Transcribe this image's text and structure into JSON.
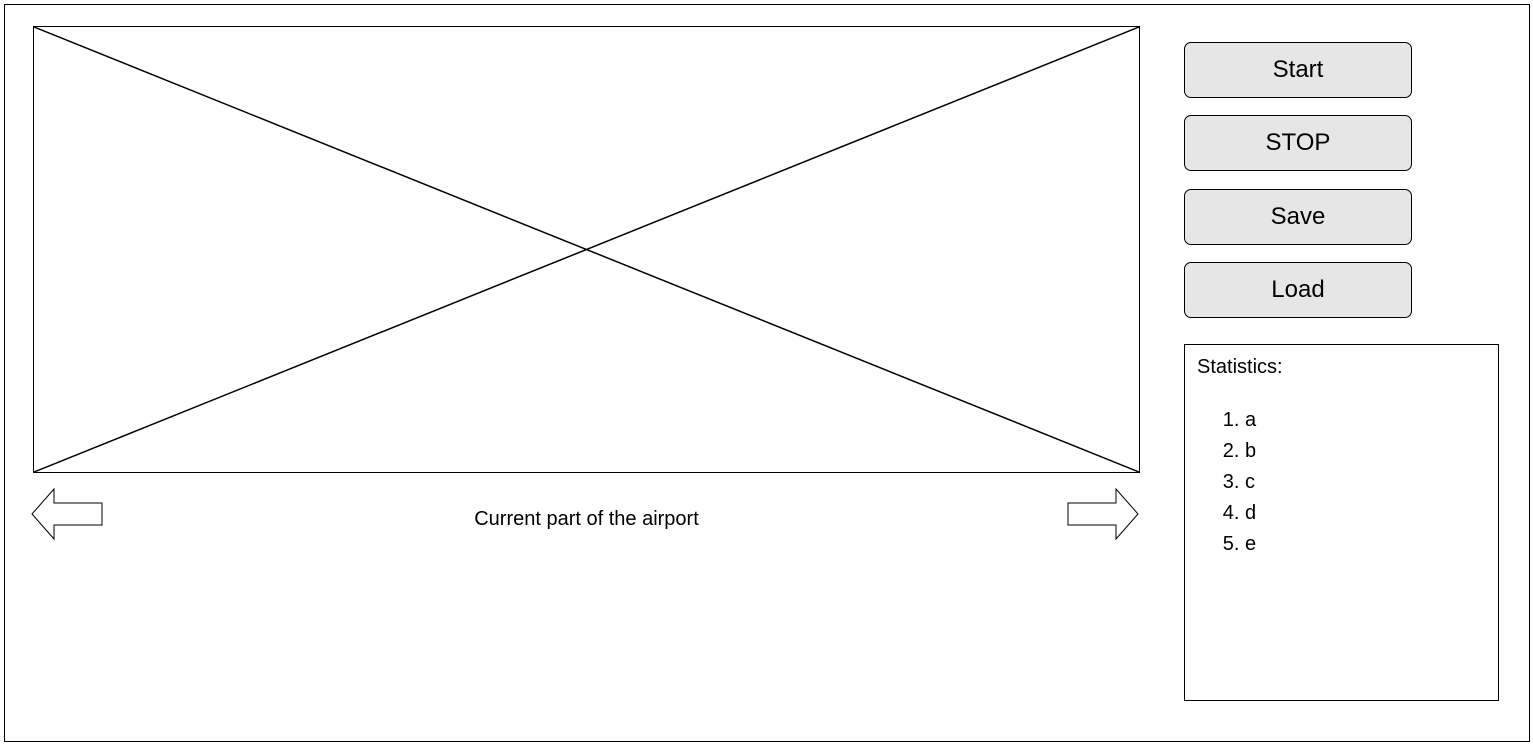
{
  "viewport": {
    "caption": "Current part of the airport",
    "left_arrow_icon": "arrow-left-icon",
    "right_arrow_icon": "arrow-right-icon"
  },
  "controls": {
    "start_label": "Start",
    "stop_label": "STOP",
    "save_label": "Save",
    "load_label": "Load"
  },
  "statistics": {
    "title": "Statistics:",
    "items": [
      "a",
      "b",
      "c",
      "d",
      "e"
    ]
  },
  "colors": {
    "button_bg": "#e6e6e6",
    "border": "#000000",
    "background": "#ffffff"
  }
}
